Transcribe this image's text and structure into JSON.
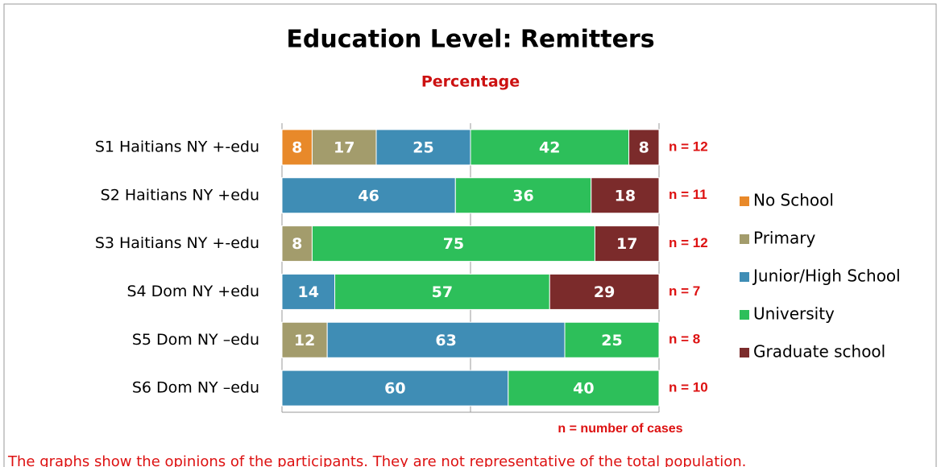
{
  "chart_data": {
    "type": "stacked_bar_horizontal",
    "title": "Education Level: Remitters",
    "subtitle": "Percentage",
    "categories": [
      "S1 Haitians NY  +-edu",
      "S2 Haitians NY +edu",
      "S3 Haitians NY +-edu",
      "S4 Dom NY +edu",
      "S5 Dom NY –edu",
      "S6 Dom NY –edu"
    ],
    "series": [
      {
        "name": "No School",
        "color": "#e8892a",
        "values": [
          8,
          null,
          null,
          null,
          null,
          null
        ]
      },
      {
        "name": "Primary",
        "color": "#a39c6c",
        "values": [
          17,
          null,
          8,
          null,
          12,
          null
        ]
      },
      {
        "name": "Junior/High School",
        "color": "#3f8db5",
        "values": [
          25,
          46,
          null,
          14,
          63,
          60
        ]
      },
      {
        "name": "University",
        "color": "#2dbf5a",
        "values": [
          42,
          36,
          75,
          57,
          25,
          40
        ]
      },
      {
        "name": "Graduate school",
        "color": "#7b2b2b",
        "values": [
          8,
          18,
          17,
          29,
          null,
          null
        ]
      }
    ],
    "case_counts": [
      "n = 12",
      "n = 11",
      "n = 12",
      "n = 7",
      "n = 8",
      "n = 10"
    ],
    "case_note": "n = number of cases",
    "footnote": "The graphs show the opinions of the participants. They are not representative of the total population.",
    "xlim": [
      0,
      100
    ],
    "xgrid": [
      0,
      50,
      100
    ],
    "legend": "right"
  }
}
